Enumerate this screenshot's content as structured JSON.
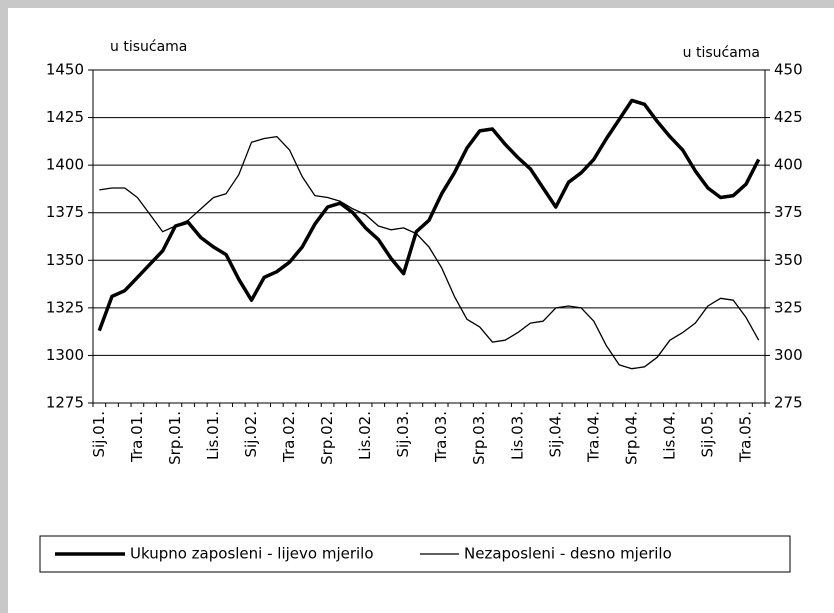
{
  "chart_data": {
    "type": "line",
    "ylabel": "u tisućama",
    "y2label": "u tisućama",
    "categories": [
      "Sij.01.",
      null,
      null,
      "Tra.01.",
      null,
      null,
      "Srp.01.",
      null,
      null,
      "Lis.01.",
      null,
      null,
      "Sij.02.",
      null,
      null,
      "Tra.02.",
      null,
      null,
      "Srp.02.",
      null,
      null,
      "Lis.02.",
      null,
      null,
      "Sij.03.",
      null,
      null,
      "Tra.03.",
      null,
      null,
      "Srp.03.",
      null,
      null,
      "Lis.03.",
      null,
      null,
      "Sij.04.",
      null,
      null,
      "Tra.04.",
      null,
      null,
      "Srp.04.",
      null,
      null,
      "Lis.04.",
      null,
      null,
      "Sij.05.",
      null,
      null,
      "Tra.05.",
      null
    ],
    "series": [
      {
        "name": "Ukupno zaposleni - lijevo mjerilo",
        "color": "#000000",
        "values": [
          1313,
          1331,
          1334,
          1341,
          1348,
          1355,
          1368,
          1370,
          1362,
          1357,
          1353,
          1340,
          1329,
          1341,
          1344,
          1349,
          1357,
          1369,
          1378,
          1380,
          1375,
          1367,
          1361,
          1351,
          1343,
          1365,
          1371,
          1385,
          1396,
          1409,
          1418,
          1419,
          1411,
          1404,
          1398,
          1388,
          1378,
          1391,
          1396,
          1403,
          1414,
          1424,
          1434,
          1432,
          1423,
          1415,
          1408,
          1397,
          1388,
          1383,
          1384,
          1390,
          1403
        ]
      },
      {
        "name": "Nezaposleni - desno mjerilo",
        "color": "#000000",
        "axis": "y2",
        "values": [
          387,
          388,
          388,
          383,
          374,
          365,
          368,
          371,
          377,
          383,
          385,
          395,
          412,
          414,
          415,
          408,
          394,
          384,
          383,
          381,
          377,
          374,
          368,
          366,
          367,
          364,
          357,
          346,
          331,
          319,
          315,
          307,
          308,
          312,
          317,
          318,
          325,
          326,
          325,
          318,
          305,
          295,
          293,
          294,
          299,
          308,
          312,
          317,
          326,
          330,
          329,
          320,
          308
        ]
      }
    ],
    "ylim": [
      1275,
      1450
    ],
    "yticks": [
      1275,
      1300,
      1325,
      1350,
      1375,
      1400,
      1425,
      1450
    ],
    "y2lim": [
      275,
      450
    ],
    "y2ticks": [
      275,
      300,
      325,
      350,
      375,
      400,
      425,
      450
    ],
    "grid": true,
    "legend": "bottom"
  }
}
